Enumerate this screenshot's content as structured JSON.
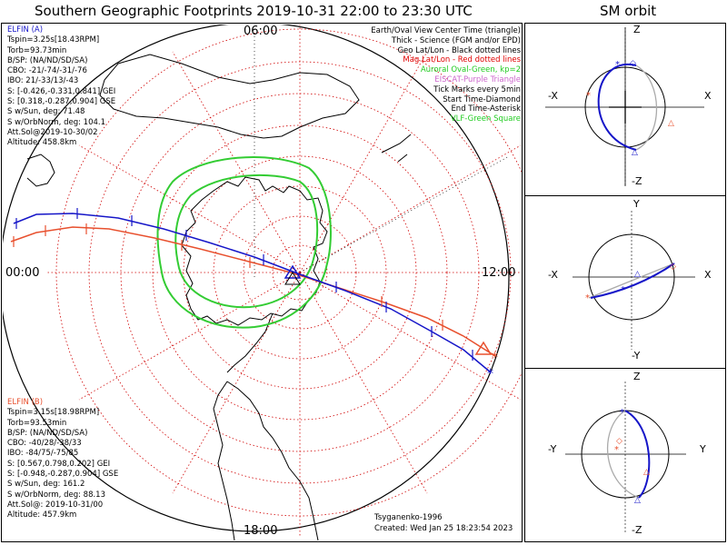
{
  "title": "Southern Geographic Footprints 2019-10-31 22:00 to 23:30 UTC",
  "sm_title": "SM orbit",
  "elfin_a": {
    "name": "ELFIN (A)",
    "color": "#1515c8",
    "lines": [
      "Tspin=3.25s[18.43RPM]",
      "Torb=93.73min",
      "B/SP: (NA/ND/SD/SA)",
      "CBO: -21/-74/-31/-76",
      "IBO: 21/-33/13/-43",
      "S: [-0.426,-0.331,0.841] GEI",
      "S: [0.318,-0.287,0.904] GSE",
      "S w/Sun, deg: 71.48",
      "S w/OrbNorm, deg: 104.1",
      "Att.Sol@2019-10-30/02",
      "Altitude: 458.8km"
    ]
  },
  "elfin_b": {
    "name": "ELFIN (B)",
    "color": "#e8502e",
    "lines": [
      "Tspin=3.15s[18.98RPM]",
      "Torb=93.53min",
      "B/SP: (NA/ND/SD/SA)",
      "CBO: -40/28/-38/33",
      "IBO: -84/75/-75/85",
      "S: [0.567,0.798,0.202] GEI",
      "S: [-0.948,-0.287,0.904] GSE",
      "S w/Sun, deg: 161.2",
      "S w/OrbNorm, deg: 88.13",
      "Att.Sol@: 2019-10-31/00",
      "Altitude: 457.9km"
    ]
  },
  "legend": [
    {
      "text": "Earth/Oval View Center Time (triangle)",
      "color": "#000000"
    },
    {
      "text": "Thick - Science (FGM and/or EPD)",
      "color": "#000000"
    },
    {
      "text": "Geo Lat/Lon - Black dotted lines",
      "color": "#000000"
    },
    {
      "text": "Mag Lat/Lon - Red dotted lines",
      "color": "#e00000"
    },
    {
      "text": "Auroral Oval-Green, kp=2",
      "color": "#22cc22"
    },
    {
      "text": "EISCAT-Purple Triangle",
      "color": "#cc66cc"
    },
    {
      "text": "Tick Marks every 5min",
      "color": "#000000"
    },
    {
      "text": "Start Time-Diamond",
      "color": "#000000"
    },
    {
      "text": "End Time-Asterisk",
      "color": "#000000"
    },
    {
      "text": "VLF-Green Square",
      "color": "#22cc22"
    }
  ],
  "time_labels": {
    "top": "06:00",
    "left": "00:00",
    "right": "12:00",
    "bottom": "18:00"
  },
  "footer": {
    "model": "Tsyganenko-1996",
    "created": "Created: Wed Jan 25 18:23:54 2023"
  },
  "sm_panels": [
    {
      "top": "Z",
      "bottom": "-Z",
      "left": "-X",
      "right": "X"
    },
    {
      "top": "Y",
      "bottom": "-Y",
      "left": "-X",
      "right": "X"
    },
    {
      "top": "Z",
      "bottom": "-Z",
      "left": "-Y",
      "right": "Y"
    }
  ],
  "colors": {
    "elfin_a": "#1515c8",
    "elfin_b": "#e8502e",
    "mag_grid": "#d00000",
    "oval": "#33cc33",
    "orbit_shadow": "#aaaaaa"
  }
}
